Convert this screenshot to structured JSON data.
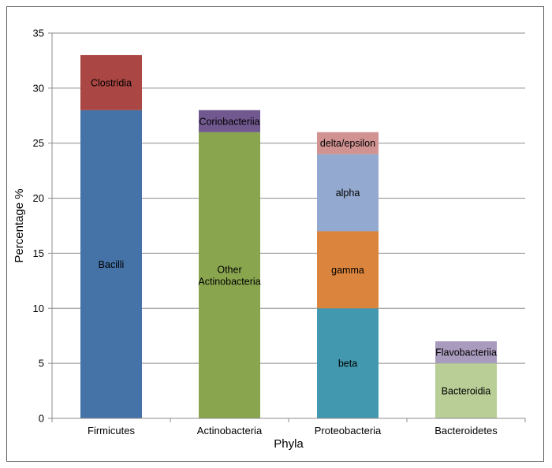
{
  "chart_data": {
    "type": "bar",
    "stacked": true,
    "title": "",
    "xlabel": "Phyla",
    "ylabel": "Percentage %",
    "ylim": [
      0,
      35
    ],
    "yticks": [
      0,
      5,
      10,
      15,
      20,
      25,
      30,
      35
    ],
    "grid": true,
    "legend": "none (segment labels inside bars)",
    "categories": [
      "Firmicutes",
      "Actinobacteria",
      "Proteobacteria",
      "Bacteroidetes"
    ],
    "stacks": [
      {
        "category": "Firmicutes",
        "segments": [
          {
            "label": "Bacilli",
            "value": 28,
            "color": "#4572a7"
          },
          {
            "label": "Clostridia",
            "value": 5,
            "color": "#aa4643"
          }
        ]
      },
      {
        "category": "Actinobacteria",
        "segments": [
          {
            "label": "Other Actinobacteria",
            "lines": [
              "Other",
              "Actinobacteria"
            ],
            "value": 26,
            "color": "#89a54e"
          },
          {
            "label": "Coriobacteriia",
            "value": 2,
            "color": "#71588f"
          }
        ]
      },
      {
        "category": "Proteobacteria",
        "segments": [
          {
            "label": "beta",
            "value": 10,
            "color": "#4198af"
          },
          {
            "label": "gamma",
            "value": 7,
            "color": "#db843d"
          },
          {
            "label": "alpha",
            "value": 7,
            "color": "#93a9cf"
          },
          {
            "label": "delta/epsilon",
            "value": 2,
            "color": "#d19392"
          }
        ]
      },
      {
        "category": "Bacteroidetes",
        "segments": [
          {
            "label": "Bacteroidia",
            "value": 5,
            "color": "#b9cd96"
          },
          {
            "label": "Flavobacteriia",
            "value": 2,
            "color": "#a99bbd"
          }
        ]
      }
    ]
  }
}
